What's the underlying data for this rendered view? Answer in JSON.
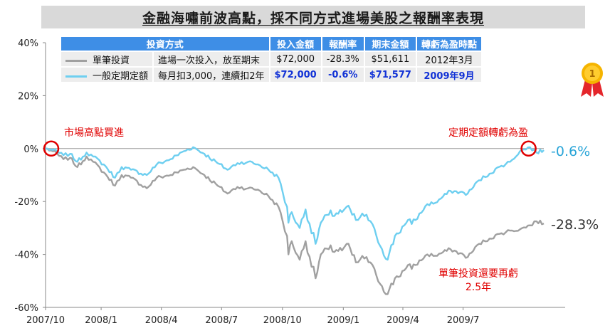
{
  "title": "金融海嘯前波高點，採不同方式進場美股之報酬率表現",
  "colors": {
    "lump_sum": "#a0a0a0",
    "dca": "#6ecff0",
    "zero_line": "#999999",
    "annotation_red": "#e00000",
    "header_blue": "#3e8ee6",
    "highlight_blue": "#1232d6",
    "final_dca_label": "#2aa5d8",
    "final_lump_label": "#333333"
  },
  "table": {
    "headers": [
      "投資方式",
      "投入金額",
      "報酬率",
      "期末金額",
      "轉虧為盈時點"
    ],
    "rows": [
      {
        "name": "單筆投資",
        "method": "進場一次投入，放至期末",
        "invested": "$72,000",
        "return": "-28.3%",
        "final": "$51,611",
        "breakeven": "2012年3月"
      },
      {
        "name": "一般定期定額",
        "method": "每月扣3,000，連續扣2年",
        "invested": "$72,000",
        "return": "-0.6%",
        "final": "$71,577",
        "breakeven": "2009年9月"
      }
    ]
  },
  "annotations": {
    "start": "市場高點買進",
    "breakeven": "定期定額轉虧為盈",
    "lump_recover_1": "單筆投資還要再虧",
    "lump_recover_2": "2.5年"
  },
  "medal_icon": "gold-medal-icon",
  "chart_data": {
    "type": "line",
    "xlabel": "",
    "ylabel": "",
    "x_ticks": [
      "2007/10",
      "2008/1",
      "2008/4",
      "2008/7",
      "2008/10",
      "2009/1",
      "2009/4",
      "2009/7"
    ],
    "x_range": [
      "2007-10-09",
      "2009-10-31"
    ],
    "y_ticks": [
      "40%",
      "20%",
      "0%",
      "-20%",
      "-40%",
      "-60%"
    ],
    "ylim": [
      -60,
      40
    ],
    "grid": false,
    "series": [
      {
        "name": "單筆投資",
        "final_label": "-28.3%",
        "points": [
          [
            "2007-10-09",
            0
          ],
          [
            "2007-10-20",
            -1
          ],
          [
            "2007-11-05",
            -4
          ],
          [
            "2007-11-15",
            -3.5
          ],
          [
            "2007-11-26",
            -7
          ],
          [
            "2007-12-10",
            -3
          ],
          [
            "2007-12-20",
            -5
          ],
          [
            "2008-01-05",
            -9
          ],
          [
            "2008-01-22",
            -14
          ],
          [
            "2008-02-01",
            -10
          ],
          [
            "2008-02-15",
            -11
          ],
          [
            "2008-03-10",
            -15
          ],
          [
            "2008-03-25",
            -11
          ],
          [
            "2008-04-15",
            -10
          ],
          [
            "2008-05-05",
            -8
          ],
          [
            "2008-05-19",
            -7
          ],
          [
            "2008-06-05",
            -10
          ],
          [
            "2008-06-25",
            -14
          ],
          [
            "2008-07-10",
            -17
          ],
          [
            "2008-07-25",
            -14.5
          ],
          [
            "2008-08-10",
            -15
          ],
          [
            "2008-08-25",
            -15.5
          ],
          [
            "2008-09-10",
            -18
          ],
          [
            "2008-09-25",
            -22
          ],
          [
            "2008-10-08",
            -33
          ],
          [
            "2008-10-10",
            -40
          ],
          [
            "2008-10-15",
            -35
          ],
          [
            "2008-10-27",
            -42
          ],
          [
            "2008-11-05",
            -35
          ],
          [
            "2008-11-20",
            -49
          ],
          [
            "2008-11-28",
            -40
          ],
          [
            "2008-12-10",
            -38
          ],
          [
            "2008-12-30",
            -38.5
          ],
          [
            "2009-01-06",
            -36
          ],
          [
            "2009-01-20",
            -43
          ],
          [
            "2009-02-05",
            -41
          ],
          [
            "2009-02-20",
            -48
          ],
          [
            "2009-03-09",
            -55
          ],
          [
            "2009-03-20",
            -49
          ],
          [
            "2009-04-03",
            -46
          ],
          [
            "2009-04-20",
            -44
          ],
          [
            "2009-05-08",
            -40
          ],
          [
            "2009-05-20",
            -40.5
          ],
          [
            "2009-06-12",
            -38
          ],
          [
            "2009-07-08",
            -41
          ],
          [
            "2009-07-25",
            -36
          ],
          [
            "2009-08-10",
            -34
          ],
          [
            "2009-08-28",
            -32
          ],
          [
            "2009-09-10",
            -31
          ],
          [
            "2009-09-25",
            -30.5
          ],
          [
            "2009-10-10",
            -29
          ],
          [
            "2009-10-20",
            -27.5
          ],
          [
            "2009-10-31",
            -28.3
          ]
        ]
      },
      {
        "name": "一般定期定額",
        "final_label": "-0.6%",
        "points": [
          [
            "2007-10-09",
            0
          ],
          [
            "2007-10-20",
            -0.5
          ],
          [
            "2007-11-05",
            -2.5
          ],
          [
            "2007-11-15",
            -2
          ],
          [
            "2007-11-26",
            -5
          ],
          [
            "2007-12-10",
            -1.5
          ],
          [
            "2007-12-20",
            -3
          ],
          [
            "2008-01-05",
            -6
          ],
          [
            "2008-01-22",
            -11
          ],
          [
            "2008-02-01",
            -7
          ],
          [
            "2008-02-15",
            -8
          ],
          [
            "2008-03-10",
            -10
          ],
          [
            "2008-03-25",
            -6
          ],
          [
            "2008-04-15",
            -4
          ],
          [
            "2008-05-05",
            -1
          ],
          [
            "2008-05-19",
            0.5
          ],
          [
            "2008-06-05",
            -2
          ],
          [
            "2008-06-25",
            -5.5
          ],
          [
            "2008-07-10",
            -8
          ],
          [
            "2008-07-25",
            -5.5
          ],
          [
            "2008-08-10",
            -5
          ],
          [
            "2008-08-25",
            -6
          ],
          [
            "2008-09-10",
            -8
          ],
          [
            "2008-09-25",
            -11
          ],
          [
            "2008-10-08",
            -22
          ],
          [
            "2008-10-10",
            -28
          ],
          [
            "2008-10-15",
            -24
          ],
          [
            "2008-10-27",
            -30
          ],
          [
            "2008-11-05",
            -23
          ],
          [
            "2008-11-20",
            -36
          ],
          [
            "2008-11-28",
            -28
          ],
          [
            "2008-12-10",
            -25
          ],
          [
            "2008-12-30",
            -24
          ],
          [
            "2009-01-06",
            -22
          ],
          [
            "2009-01-20",
            -27
          ],
          [
            "2009-02-05",
            -25
          ],
          [
            "2009-02-20",
            -33
          ],
          [
            "2009-03-09",
            -42
          ],
          [
            "2009-03-20",
            -33
          ],
          [
            "2009-04-03",
            -29
          ],
          [
            "2009-04-20",
            -27
          ],
          [
            "2009-05-08",
            -21
          ],
          [
            "2009-05-20",
            -20.5
          ],
          [
            "2009-06-12",
            -16
          ],
          [
            "2009-07-08",
            -17
          ],
          [
            "2009-07-25",
            -12
          ],
          [
            "2009-08-10",
            -9.5
          ],
          [
            "2009-08-28",
            -6.5
          ],
          [
            "2009-09-10",
            -5
          ],
          [
            "2009-09-25",
            -1
          ],
          [
            "2009-10-10",
            0.5
          ],
          [
            "2009-10-20",
            -1.5
          ],
          [
            "2009-10-31",
            -0.6
          ]
        ]
      }
    ]
  }
}
